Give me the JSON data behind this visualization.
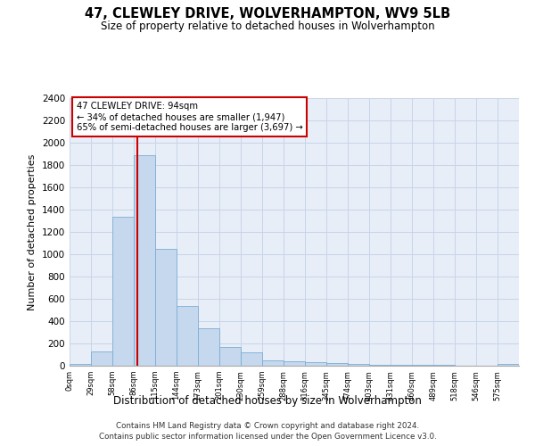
{
  "title": "47, CLEWLEY DRIVE, WOLVERHAMPTON, WV9 5LB",
  "subtitle": "Size of property relative to detached houses in Wolverhampton",
  "xlabel": "Distribution of detached houses by size in Wolverhampton",
  "ylabel": "Number of detached properties",
  "bar_color": "#c5d8ed",
  "bar_edge_color": "#7aadd4",
  "background_color": "#ffffff",
  "plot_bg_color": "#e8eef8",
  "grid_color": "#c8d4e8",
  "annotation_line_color": "#cc0000",
  "annotation_text_line1": "47 CLEWLEY DRIVE: 94sqm",
  "annotation_text_line2": "← 34% of detached houses are smaller (1,947)",
  "annotation_text_line3": "65% of semi-detached houses are larger (3,697) →",
  "property_bin_index": 3,
  "categories": [
    "0sqm",
    "29sqm",
    "58sqm",
    "86sqm",
    "115sqm",
    "144sqm",
    "173sqm",
    "201sqm",
    "230sqm",
    "259sqm",
    "288sqm",
    "316sqm",
    "345sqm",
    "374sqm",
    "403sqm",
    "431sqm",
    "460sqm",
    "489sqm",
    "518sqm",
    "546sqm",
    "575sqm"
  ],
  "values": [
    20,
    130,
    1340,
    1890,
    1050,
    540,
    340,
    170,
    120,
    50,
    40,
    30,
    25,
    15,
    10,
    10,
    5,
    5,
    0,
    0,
    20
  ],
  "ylim": [
    0,
    2400
  ],
  "yticks": [
    0,
    200,
    400,
    600,
    800,
    1000,
    1200,
    1400,
    1600,
    1800,
    2000,
    2200,
    2400
  ],
  "footer_line1": "Contains HM Land Registry data © Crown copyright and database right 2024.",
  "footer_line2": "Contains public sector information licensed under the Open Government Licence v3.0."
}
